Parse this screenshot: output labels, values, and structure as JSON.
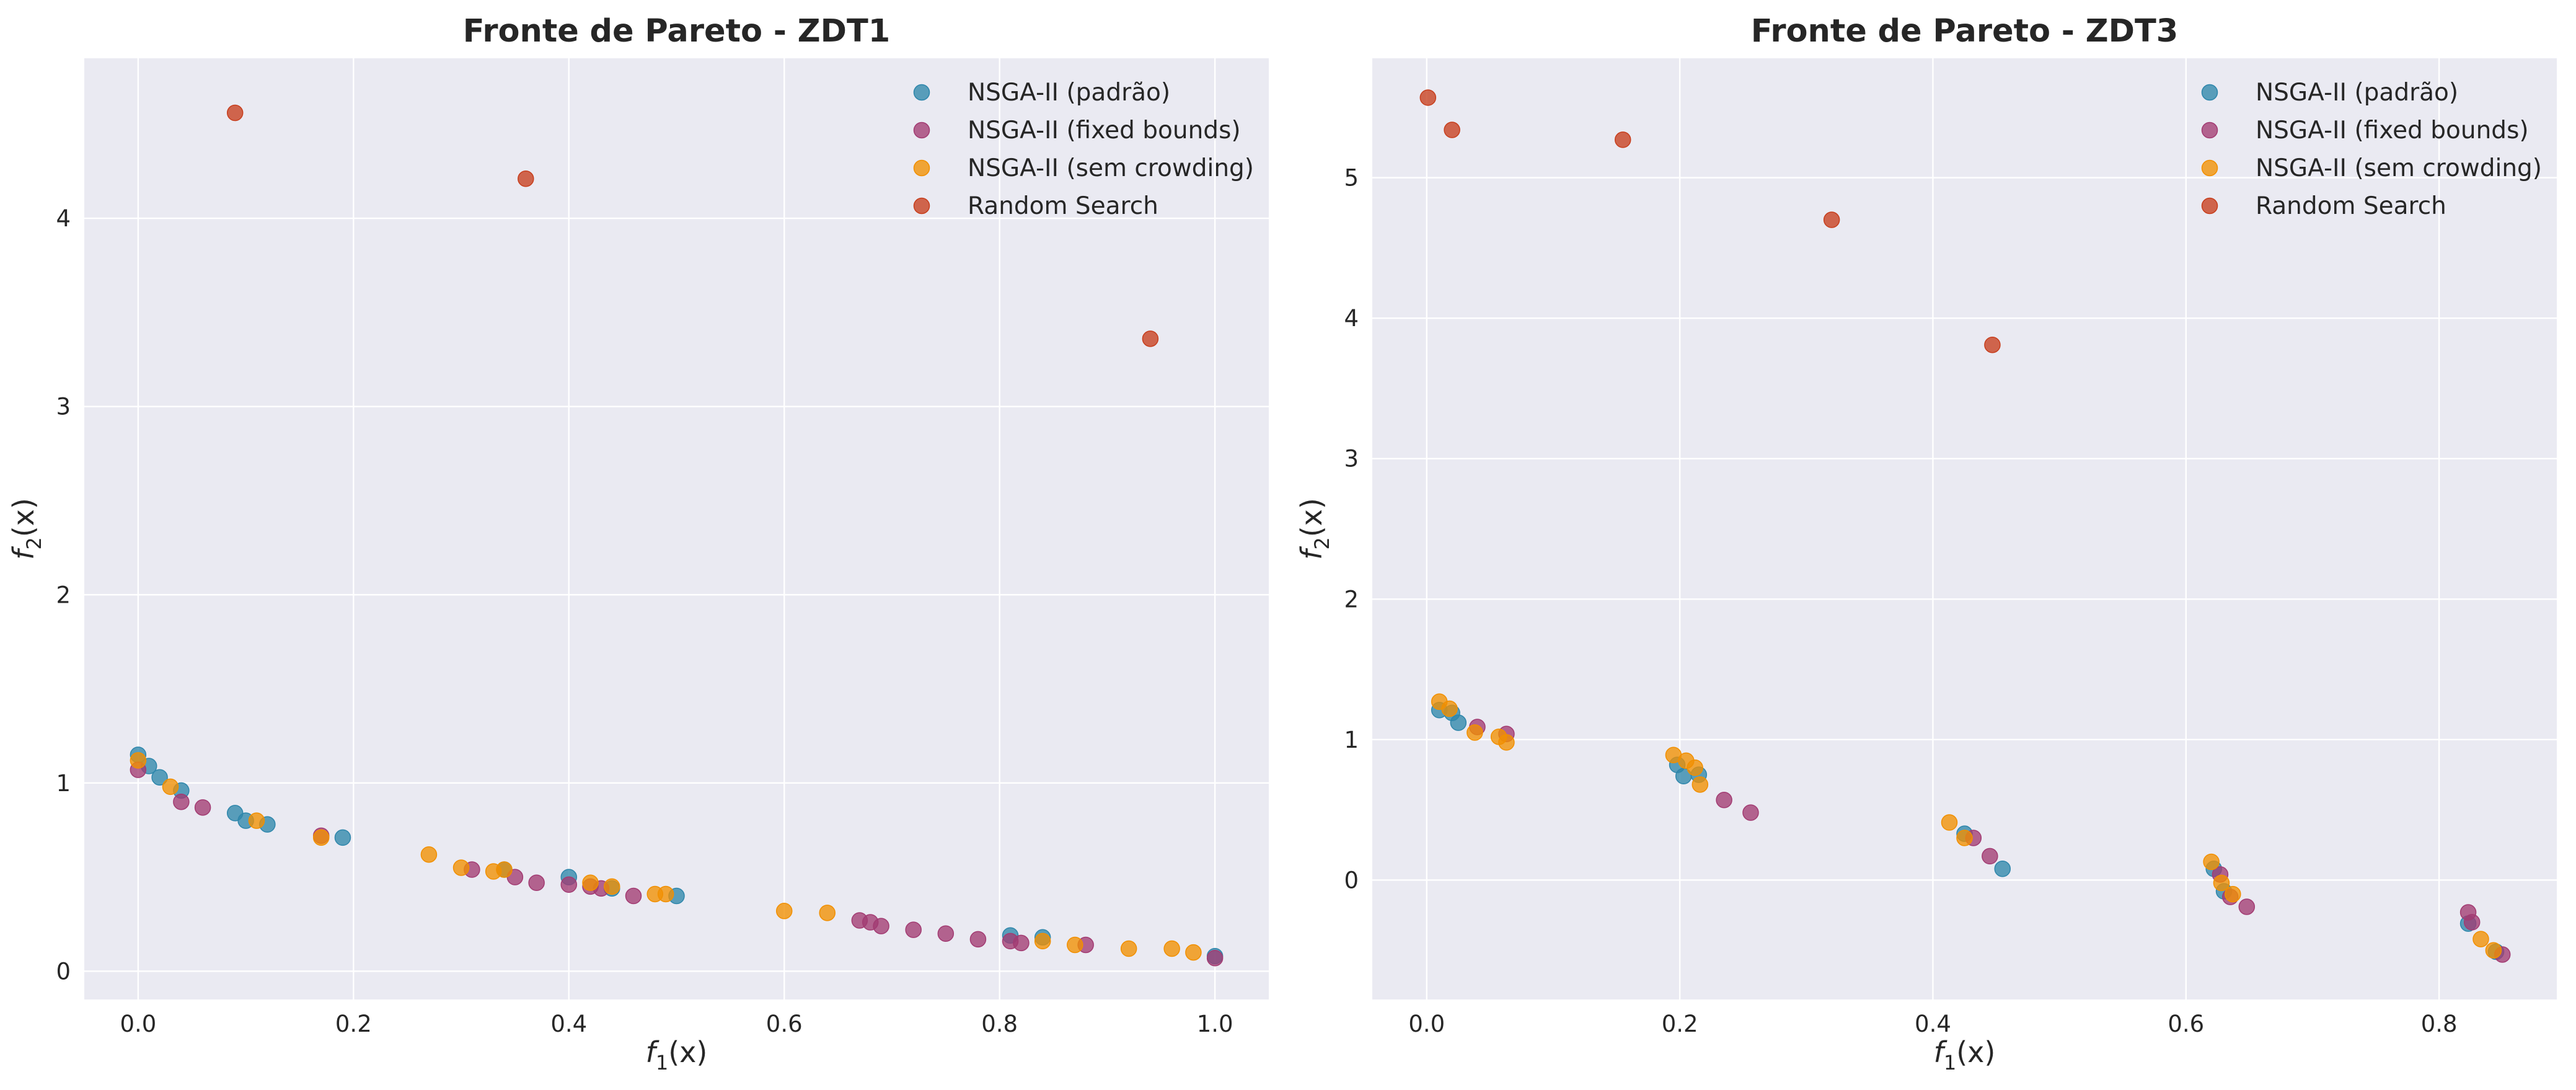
{
  "colors": {
    "background": "#eaeaf2",
    "grid": "#ffffff",
    "padrao": "#2e86ab",
    "fixed": "#a23b72",
    "semcrowding": "#f18f01",
    "random": "#c73e1d"
  },
  "axis_text": {
    "x_base": "f",
    "x_sub": "1",
    "x_arg": "(x)",
    "y_base": "f",
    "y_sub": "2",
    "y_arg": "(x)"
  },
  "chart_data": [
    {
      "type": "scatter",
      "title": "Fronte de Pareto - ZDT1",
      "xlabel": "f_1(x)",
      "ylabel": "f_2(x)",
      "xlim": [
        -0.05,
        1.05
      ],
      "ylim": [
        -0.15,
        4.85
      ],
      "xticks": [
        0.0,
        0.2,
        0.4,
        0.6,
        0.8,
        1.0
      ],
      "yticks": [
        0,
        1,
        2,
        3,
        4
      ],
      "x_decimals": 1,
      "y_decimals": 0,
      "grid": true,
      "legend_position": "top-right",
      "series": [
        {
          "name": "NSGA-II (padrão)",
          "color_key": "padrao",
          "points": [
            [
              0.0,
              1.15
            ],
            [
              0.01,
              1.09
            ],
            [
              0.02,
              1.03
            ],
            [
              0.04,
              0.96
            ],
            [
              0.09,
              0.84
            ],
            [
              0.1,
              0.8
            ],
            [
              0.12,
              0.78
            ],
            [
              0.19,
              0.71
            ],
            [
              0.34,
              0.54
            ],
            [
              0.4,
              0.5
            ],
            [
              0.44,
              0.44
            ],
            [
              0.5,
              0.4
            ],
            [
              0.81,
              0.19
            ],
            [
              0.84,
              0.18
            ],
            [
              1.0,
              0.08
            ]
          ]
        },
        {
          "name": "NSGA-II (fixed bounds)",
          "color_key": "fixed",
          "points": [
            [
              0.0,
              1.07
            ],
            [
              0.04,
              0.9
            ],
            [
              0.06,
              0.87
            ],
            [
              0.17,
              0.72
            ],
            [
              0.31,
              0.54
            ],
            [
              0.35,
              0.5
            ],
            [
              0.37,
              0.47
            ],
            [
              0.4,
              0.46
            ],
            [
              0.42,
              0.45
            ],
            [
              0.43,
              0.44
            ],
            [
              0.46,
              0.4
            ],
            [
              0.67,
              0.27
            ],
            [
              0.68,
              0.26
            ],
            [
              0.69,
              0.24
            ],
            [
              0.72,
              0.22
            ],
            [
              0.75,
              0.2
            ],
            [
              0.78,
              0.17
            ],
            [
              0.81,
              0.16
            ],
            [
              0.82,
              0.15
            ],
            [
              0.88,
              0.14
            ],
            [
              1.0,
              0.07
            ]
          ]
        },
        {
          "name": "NSGA-II (sem crowding)",
          "color_key": "semcrowding",
          "points": [
            [
              0.0,
              1.12
            ],
            [
              0.03,
              0.98
            ],
            [
              0.11,
              0.8
            ],
            [
              0.17,
              0.71
            ],
            [
              0.27,
              0.62
            ],
            [
              0.3,
              0.55
            ],
            [
              0.33,
              0.53
            ],
            [
              0.34,
              0.54
            ],
            [
              0.42,
              0.47
            ],
            [
              0.44,
              0.45
            ],
            [
              0.48,
              0.41
            ],
            [
              0.49,
              0.41
            ],
            [
              0.6,
              0.32
            ],
            [
              0.64,
              0.31
            ],
            [
              0.84,
              0.16
            ],
            [
              0.87,
              0.14
            ],
            [
              0.92,
              0.12
            ],
            [
              0.96,
              0.12
            ],
            [
              0.98,
              0.1
            ]
          ]
        },
        {
          "name": "Random Search",
          "color_key": "random",
          "points": [
            [
              0.09,
              4.56
            ],
            [
              0.36,
              4.21
            ],
            [
              0.94,
              3.36
            ]
          ]
        }
      ]
    },
    {
      "type": "scatter",
      "title": "Fronte de Pareto - ZDT3",
      "xlabel": "f_1(x)",
      "ylabel": "f_2(x)",
      "xlim": [
        -0.043,
        0.893
      ],
      "ylim": [
        -0.85,
        5.85
      ],
      "xticks": [
        0.0,
        0.2,
        0.4,
        0.6,
        0.8
      ],
      "yticks": [
        0,
        1,
        2,
        3,
        4,
        5
      ],
      "x_decimals": 1,
      "y_decimals": 0,
      "grid": true,
      "legend_position": "top-right",
      "series": [
        {
          "name": "NSGA-II (padrão)",
          "color_key": "padrao",
          "points": [
            [
              0.01,
              1.21
            ],
            [
              0.02,
              1.19
            ],
            [
              0.025,
              1.12
            ],
            [
              0.198,
              0.82
            ],
            [
              0.203,
              0.74
            ],
            [
              0.215,
              0.75
            ],
            [
              0.425,
              0.33
            ],
            [
              0.455,
              0.08
            ],
            [
              0.622,
              0.08
            ],
            [
              0.63,
              -0.08
            ],
            [
              0.823,
              -0.31
            ],
            [
              0.845,
              -0.51
            ]
          ]
        },
        {
          "name": "NSGA-II (fixed bounds)",
          "color_key": "fixed",
          "points": [
            [
              0.04,
              1.09
            ],
            [
              0.063,
              1.04
            ],
            [
              0.235,
              0.57
            ],
            [
              0.256,
              0.48
            ],
            [
              0.432,
              0.3
            ],
            [
              0.445,
              0.17
            ],
            [
              0.627,
              0.04
            ],
            [
              0.635,
              -0.12
            ],
            [
              0.648,
              -0.19
            ],
            [
              0.823,
              -0.23
            ],
            [
              0.826,
              -0.3
            ],
            [
              0.85,
              -0.53
            ]
          ]
        },
        {
          "name": "NSGA-II (sem crowding)",
          "color_key": "semcrowding",
          "points": [
            [
              0.01,
              1.27
            ],
            [
              0.018,
              1.22
            ],
            [
              0.038,
              1.05
            ],
            [
              0.057,
              1.02
            ],
            [
              0.063,
              0.98
            ],
            [
              0.195,
              0.89
            ],
            [
              0.205,
              0.85
            ],
            [
              0.212,
              0.8
            ],
            [
              0.216,
              0.68
            ],
            [
              0.413,
              0.41
            ],
            [
              0.425,
              0.3
            ],
            [
              0.62,
              0.13
            ],
            [
              0.628,
              -0.02
            ],
            [
              0.637,
              -0.1
            ],
            [
              0.833,
              -0.42
            ],
            [
              0.843,
              -0.5
            ]
          ]
        },
        {
          "name": "Random Search",
          "color_key": "random",
          "points": [
            [
              0.001,
              5.57
            ],
            [
              0.02,
              5.34
            ],
            [
              0.155,
              5.27
            ],
            [
              0.32,
              4.7
            ],
            [
              0.447,
              3.81
            ]
          ]
        }
      ]
    }
  ]
}
